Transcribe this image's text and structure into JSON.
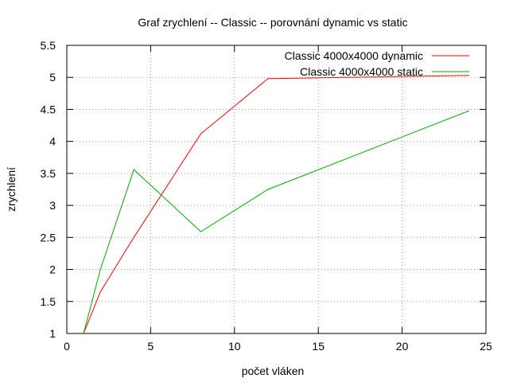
{
  "chart_data": {
    "type": "line",
    "title": "Graf zrychlení -- Classic -- porovnání dynamic vs static",
    "xlabel": "počet vláken",
    "ylabel": "zrychlení",
    "xlim": [
      0,
      25
    ],
    "ylim": [
      1,
      5.5
    ],
    "xticks": [
      "0",
      "5",
      "10",
      "15",
      "20",
      "25"
    ],
    "yticks": [
      "1",
      "1.5",
      "2",
      "2.5",
      "3",
      "3.5",
      "4",
      "4.5",
      "5",
      "5.5"
    ],
    "grid": true,
    "legend_position": "top-right",
    "series": [
      {
        "name": "Classic 4000x4000 dynamic",
        "color": "#ff0000",
        "x": [
          1,
          2,
          4,
          8,
          12,
          24
        ],
        "y": [
          1.0,
          1.65,
          2.5,
          4.12,
          4.98,
          5.03
        ]
      },
      {
        "name": "Classic 4000x4000 static",
        "color": "#00aa00",
        "x": [
          1,
          2,
          4,
          8,
          12,
          24
        ],
        "y": [
          1.0,
          2.0,
          3.56,
          2.59,
          3.25,
          4.48
        ]
      }
    ]
  }
}
